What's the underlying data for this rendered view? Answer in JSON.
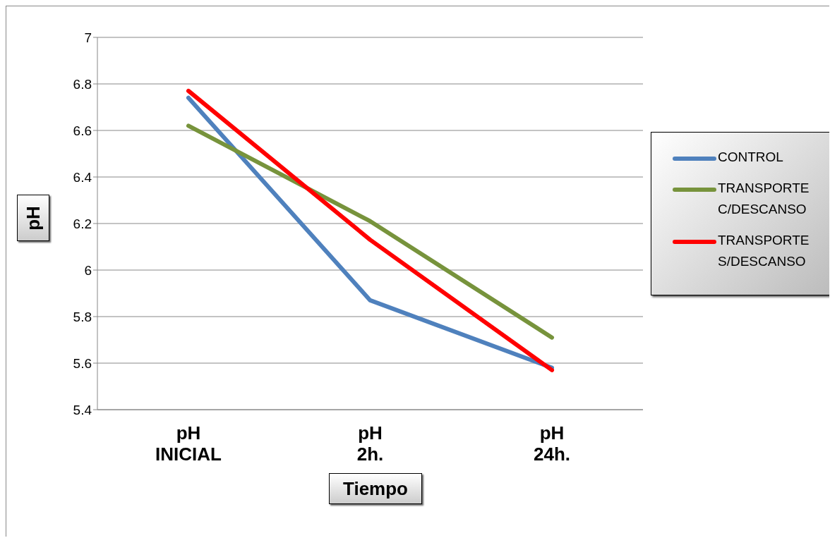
{
  "chart_data": {
    "type": "line",
    "xlabel": "Tiempo",
    "ylabel": "pH",
    "categories": [
      "pH\nINICIAL",
      "pH\n2h.",
      "pH\n24h."
    ],
    "series": [
      {
        "name": "CONTROL",
        "color": "#4f81bd",
        "values": [
          6.74,
          5.87,
          5.58
        ]
      },
      {
        "name": "TRANSPORTE C/DESCANSO",
        "color": "#77933c",
        "values": [
          6.62,
          6.21,
          5.71
        ]
      },
      {
        "name": "TRANSPORTE S/DESCANSO",
        "color": "#ff0000",
        "values": [
          6.77,
          6.13,
          5.57
        ]
      }
    ],
    "ylim": [
      5.4,
      7
    ],
    "yticks": [
      5.4,
      5.6,
      5.8,
      6,
      6.2,
      6.4,
      6.6,
      6.8,
      7
    ],
    "grid": "y",
    "legend": "right",
    "marker": "none",
    "line_style": "solid"
  }
}
